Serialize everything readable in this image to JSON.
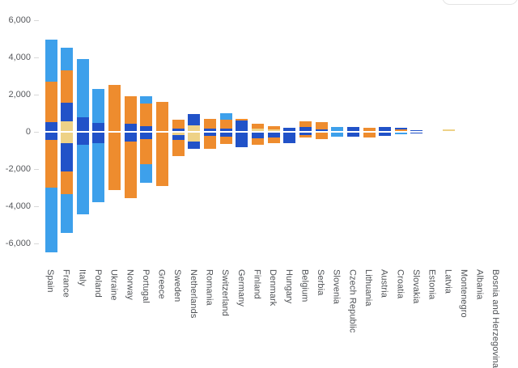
{
  "chart": {
    "y_axis": {
      "tick_labels": [
        "6,000",
        "4,000",
        "2,000",
        "0",
        "-2,000",
        "-4,000",
        "-6,000"
      ],
      "tick_values": [
        6000,
        4000,
        2000,
        0,
        -2000,
        -4000,
        -6000
      ]
    }
  },
  "chart_data": {
    "type": "bar",
    "stacked": true,
    "grid": false,
    "legend": "none",
    "title": "",
    "xlabel": "",
    "ylabel": "",
    "ylim": [
      -6600,
      6000
    ],
    "palette": {
      "cream": "#eed287",
      "dark_blue": "#2152c8",
      "orange": "#ee8c2e",
      "light_blue": "#3da0eb"
    },
    "series_stack_order_from_zero": [
      "cream",
      "dark_blue",
      "orange",
      "light_blue"
    ],
    "categories": [
      "Spain",
      "France",
      "Italy",
      "Poland",
      "Ukraine",
      "Norway",
      "Portugal",
      "Greece",
      "Sweden",
      "Netherlands",
      "Romania",
      "Switzerland",
      "Germany",
      "Finland",
      "Denmark",
      "Hungary",
      "Belgium",
      "Serbia",
      "Slovenia",
      "Czech Republic",
      "Lithuania",
      "Austria",
      "Croatia",
      "Slovakia",
      "Estonia",
      "Latvia",
      "Montenegro",
      "Albania",
      "Bosnia and Herzegovina"
    ],
    "bars": [
      {
        "country": "Spain",
        "positive": [
          {
            "color": "dark_blue",
            "value": 520
          },
          {
            "color": "orange",
            "value": 2190
          },
          {
            "color": "light_blue",
            "value": 2250
          }
        ],
        "negative": [
          {
            "color": "dark_blue",
            "value": -450
          },
          {
            "color": "orange",
            "value": -2560
          },
          {
            "color": "light_blue",
            "value": -3460
          }
        ]
      },
      {
        "country": "France",
        "positive": [
          {
            "color": "cream",
            "value": 570
          },
          {
            "color": "dark_blue",
            "value": 1010
          },
          {
            "color": "orange",
            "value": 1740
          },
          {
            "color": "light_blue",
            "value": 1190
          }
        ],
        "negative": [
          {
            "color": "cream",
            "value": -600
          },
          {
            "color": "dark_blue",
            "value": -1520
          },
          {
            "color": "orange",
            "value": -1230
          },
          {
            "color": "light_blue",
            "value": -2100
          }
        ]
      },
      {
        "country": "Italy",
        "positive": [
          {
            "color": "dark_blue",
            "value": 780
          },
          {
            "color": "light_blue",
            "value": 3120
          }
        ],
        "negative": [
          {
            "color": "dark_blue",
            "value": -700
          },
          {
            "color": "light_blue",
            "value": -3740
          }
        ]
      },
      {
        "country": "Poland",
        "positive": [
          {
            "color": "dark_blue",
            "value": 490
          },
          {
            "color": "light_blue",
            "value": 1810
          }
        ],
        "negative": [
          {
            "color": "dark_blue",
            "value": -600
          },
          {
            "color": "light_blue",
            "value": -3180
          }
        ]
      },
      {
        "country": "Ukraine",
        "positive": [
          {
            "color": "orange",
            "value": 2540
          }
        ],
        "negative": [
          {
            "color": "orange",
            "value": -3150
          }
        ]
      },
      {
        "country": "Norway",
        "positive": [
          {
            "color": "dark_blue",
            "value": 440
          },
          {
            "color": "orange",
            "value": 1480
          }
        ],
        "negative": [
          {
            "color": "dark_blue",
            "value": -540
          },
          {
            "color": "orange",
            "value": -3010
          }
        ]
      },
      {
        "country": "Portugal",
        "positive": [
          {
            "color": "dark_blue",
            "value": 320
          },
          {
            "color": "orange",
            "value": 1200
          },
          {
            "color": "light_blue",
            "value": 390
          }
        ],
        "negative": [
          {
            "color": "dark_blue",
            "value": -370
          },
          {
            "color": "orange",
            "value": -1350
          },
          {
            "color": "light_blue",
            "value": -1040
          }
        ]
      },
      {
        "country": "Greece",
        "positive": [
          {
            "color": "orange",
            "value": 1590
          }
        ],
        "negative": [
          {
            "color": "orange",
            "value": -2900
          }
        ]
      },
      {
        "country": "Sweden",
        "positive": [
          {
            "color": "dark_blue",
            "value": 190
          },
          {
            "color": "orange",
            "value": 480
          }
        ],
        "negative": [
          {
            "color": "cream",
            "value": -190
          },
          {
            "color": "dark_blue",
            "value": -250
          },
          {
            "color": "orange",
            "value": -870
          }
        ]
      },
      {
        "country": "Netherlands",
        "positive": [
          {
            "color": "cream",
            "value": 360
          },
          {
            "color": "dark_blue",
            "value": 580
          }
        ],
        "negative": [
          {
            "color": "cream",
            "value": -510
          },
          {
            "color": "dark_blue",
            "value": -390
          }
        ]
      },
      {
        "country": "Romania",
        "positive": [
          {
            "color": "dark_blue",
            "value": 190
          },
          {
            "color": "orange",
            "value": 510
          }
        ],
        "negative": [
          {
            "color": "dark_blue",
            "value": -220
          },
          {
            "color": "orange",
            "value": -680
          }
        ]
      },
      {
        "country": "Switzerland",
        "positive": [
          {
            "color": "dark_blue",
            "value": 190
          },
          {
            "color": "orange",
            "value": 460
          },
          {
            "color": "light_blue",
            "value": 360
          }
        ],
        "negative": [
          {
            "color": "dark_blue",
            "value": -260
          },
          {
            "color": "orange",
            "value": -390
          }
        ]
      },
      {
        "country": "Germany",
        "positive": [
          {
            "color": "dark_blue",
            "value": 610
          },
          {
            "color": "orange",
            "value": 90
          }
        ],
        "negative": [
          {
            "color": "dark_blue",
            "value": -840
          }
        ]
      },
      {
        "country": "Finland",
        "positive": [
          {
            "color": "cream",
            "value": 180
          },
          {
            "color": "orange",
            "value": 270
          }
        ],
        "negative": [
          {
            "color": "dark_blue",
            "value": -330
          },
          {
            "color": "orange",
            "value": -370
          }
        ]
      },
      {
        "country": "Denmark",
        "positive": [
          {
            "color": "cream",
            "value": 150
          },
          {
            "color": "orange",
            "value": 170
          }
        ],
        "negative": [
          {
            "color": "dark_blue",
            "value": -300
          },
          {
            "color": "orange",
            "value": -320
          }
        ]
      },
      {
        "country": "Hungary",
        "positive": [
          {
            "color": "dark_blue",
            "value": 220
          }
        ],
        "negative": [
          {
            "color": "dark_blue",
            "value": -630
          }
        ]
      },
      {
        "country": "Belgium",
        "positive": [
          {
            "color": "dark_blue",
            "value": 260
          },
          {
            "color": "orange",
            "value": 290
          }
        ],
        "negative": [
          {
            "color": "dark_blue",
            "value": -160
          },
          {
            "color": "orange",
            "value": -160
          }
        ]
      },
      {
        "country": "Serbia",
        "positive": [
          {
            "color": "dark_blue",
            "value": 110
          },
          {
            "color": "orange",
            "value": 410
          }
        ],
        "negative": [
          {
            "color": "orange",
            "value": -380
          }
        ]
      },
      {
        "country": "Slovenia",
        "positive": [
          {
            "color": "light_blue",
            "value": 260
          }
        ],
        "negative": [
          {
            "color": "light_blue",
            "value": -260
          }
        ]
      },
      {
        "country": "Czech Republic",
        "positive": [
          {
            "color": "dark_blue",
            "value": 250
          }
        ],
        "negative": [
          {
            "color": "dark_blue",
            "value": -250
          }
        ]
      },
      {
        "country": "Lithuania",
        "positive": [
          {
            "color": "orange",
            "value": 220
          }
        ],
        "negative": [
          {
            "color": "orange",
            "value": -290
          }
        ]
      },
      {
        "country": "Austria",
        "positive": [
          {
            "color": "dark_blue",
            "value": 260
          }
        ],
        "negative": [
          {
            "color": "dark_blue",
            "value": -220
          }
        ]
      },
      {
        "country": "Croatia",
        "positive": [
          {
            "color": "orange",
            "value": 110
          },
          {
            "color": "dark_blue",
            "value": 90
          }
        ],
        "negative": [
          {
            "color": "light_blue",
            "value": -150
          }
        ]
      },
      {
        "country": "Slovakia",
        "positive": [
          {
            "color": "dark_blue",
            "value": 100
          }
        ],
        "negative": [
          {
            "color": "dark_blue",
            "value": -100
          }
        ]
      },
      {
        "country": "Estonia",
        "positive": [
          {
            "color": "orange",
            "value": 60
          }
        ],
        "negative": [
          {
            "color": "orange",
            "value": -60
          }
        ]
      },
      {
        "country": "Latvia",
        "positive": [
          {
            "color": "cream",
            "value": 110
          }
        ],
        "negative": [
          {
            "color": "cream",
            "value": -30
          }
        ]
      },
      {
        "country": "Montenegro",
        "positive": [
          {
            "color": "dark_blue",
            "value": 30
          }
        ],
        "negative": [
          {
            "color": "dark_blue",
            "value": -30
          }
        ]
      },
      {
        "country": "Albania",
        "positive": [
          {
            "color": "light_blue",
            "value": 15
          }
        ],
        "negative": [
          {
            "color": "light_blue",
            "value": -30
          }
        ]
      },
      {
        "country": "Bosnia and Herzegovina",
        "positive": [],
        "negative": []
      }
    ]
  }
}
